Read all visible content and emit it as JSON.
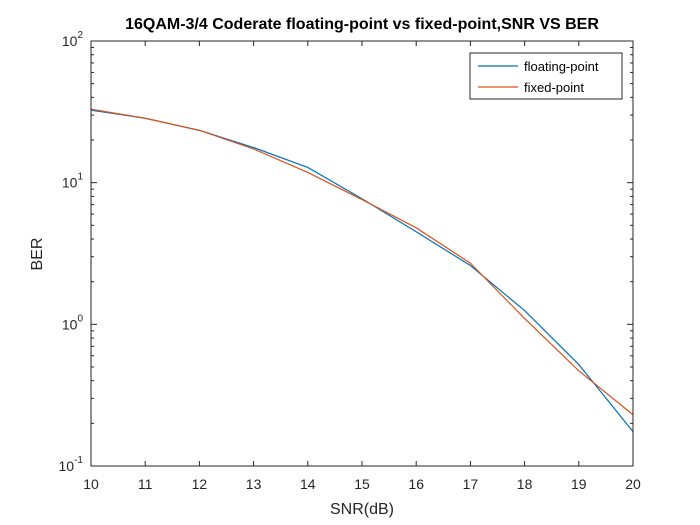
{
  "chart_data": {
    "type": "line",
    "title": "16QAM-3/4 Coderate floating-point vs fixed-point,SNR VS BER",
    "xlabel": "SNR(dB)",
    "ylabel": "BER",
    "xlim": [
      10,
      20
    ],
    "ylim": [
      0.1,
      100
    ],
    "yscale": "log",
    "grid": false,
    "legend_position": "top-right",
    "x_ticks": [
      "10",
      "11",
      "12",
      "13",
      "14",
      "15",
      "16",
      "17",
      "18",
      "19",
      "20"
    ],
    "y_ticks": [
      {
        "value": 0.1,
        "base": "10",
        "exp": "-1"
      },
      {
        "value": 1,
        "base": "10",
        "exp": "0"
      },
      {
        "value": 10,
        "base": "10",
        "exp": "1"
      },
      {
        "value": 100,
        "base": "10",
        "exp": "2"
      }
    ],
    "x": [
      10,
      11,
      12,
      13,
      14,
      15,
      16,
      17,
      18,
      19,
      20
    ],
    "series": [
      {
        "name": "floating-point",
        "color": "#0072BD",
        "values": [
          32.5,
          28.5,
          23.4,
          17.7,
          12.8,
          7.7,
          4.5,
          2.6,
          1.25,
          0.52,
          0.175
        ]
      },
      {
        "name": "fixed-point",
        "color": "#D95319",
        "values": [
          33.0,
          28.5,
          23.4,
          17.3,
          11.8,
          7.6,
          4.8,
          2.7,
          1.1,
          0.47,
          0.23
        ]
      }
    ]
  }
}
